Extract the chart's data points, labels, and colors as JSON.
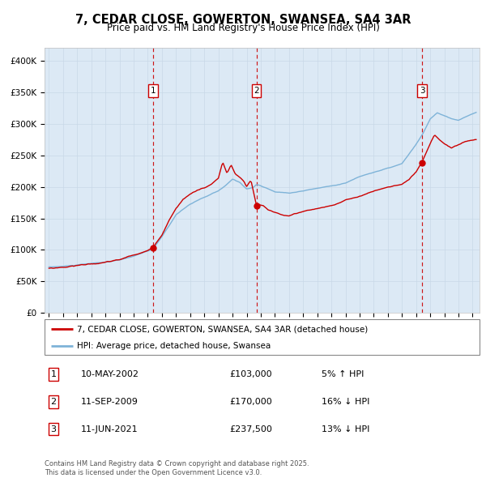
{
  "title_line1": "7, CEDAR CLOSE, GOWERTON, SWANSEA, SA4 3AR",
  "title_line2": "Price paid vs. HM Land Registry's House Price Index (HPI)",
  "bg_color": "#dce9f5",
  "hpi_color": "#7eb3d8",
  "price_color": "#cc0000",
  "marker_color": "#cc0000",
  "vline_color": "#cc0000",
  "sale_dates_num": [
    2002.36,
    2009.69,
    2021.44
  ],
  "sale_prices": [
    103000,
    170000,
    237500
  ],
  "sale_labels": [
    "1",
    "2",
    "3"
  ],
  "sale_info": [
    {
      "label": "1",
      "date": "10-MAY-2002",
      "price": "£103,000",
      "hpi_rel": "5% ↑ HPI"
    },
    {
      "label": "2",
      "date": "11-SEP-2009",
      "price": "£170,000",
      "hpi_rel": "16% ↓ HPI"
    },
    {
      "label": "3",
      "date": "11-JUN-2021",
      "price": "£237,500",
      "hpi_rel": "13% ↓ HPI"
    }
  ],
  "ylim": [
    0,
    420000
  ],
  "xlim_start": 1994.7,
  "xlim_end": 2025.5,
  "yticks": [
    0,
    50000,
    100000,
    150000,
    200000,
    250000,
    300000,
    350000,
    400000
  ],
  "ytick_labels": [
    "£0",
    "£50K",
    "£100K",
    "£150K",
    "£200K",
    "£250K",
    "£300K",
    "£350K",
    "£400K"
  ],
  "legend_line1": "7, CEDAR CLOSE, GOWERTON, SWANSEA, SA4 3AR (detached house)",
  "legend_line2": "HPI: Average price, detached house, Swansea",
  "footer_line1": "Contains HM Land Registry data © Crown copyright and database right 2025.",
  "footer_line2": "This data is licensed under the Open Government Licence v3.0."
}
